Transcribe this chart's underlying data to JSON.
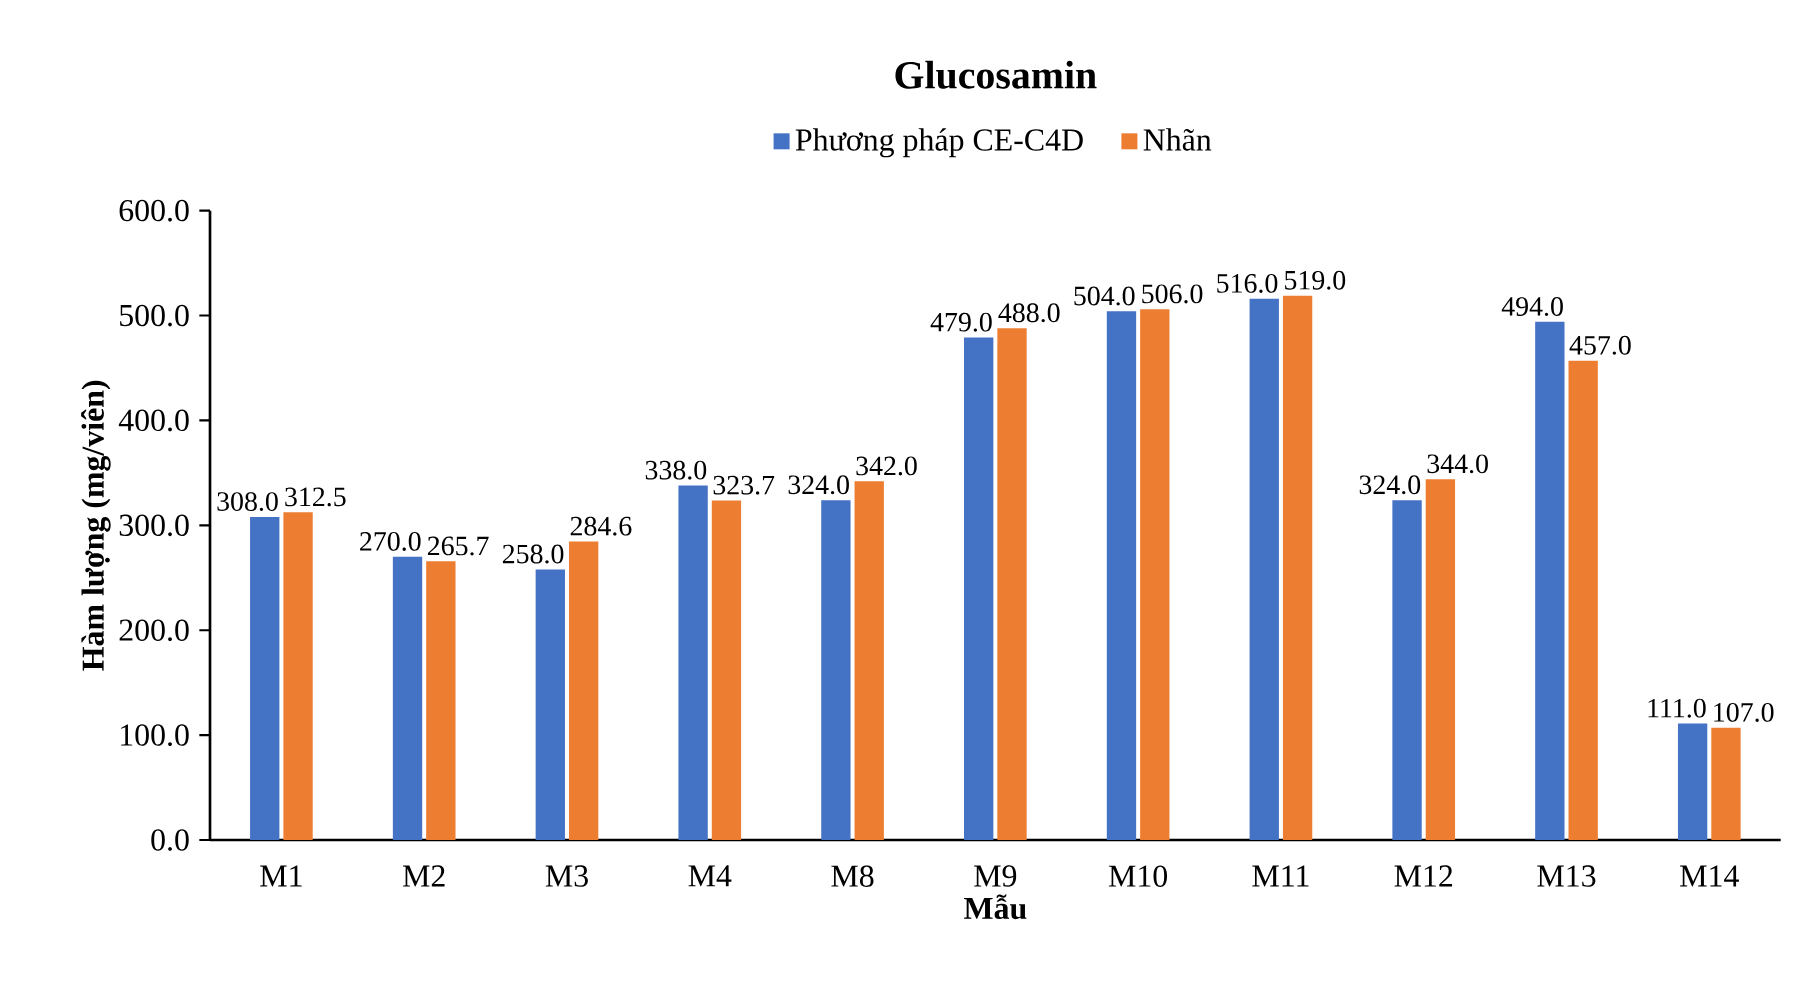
{
  "chart_data": {
    "type": "bar",
    "title": "Glucosamin",
    "xlabel": "Mẫu",
    "ylabel": "Hàm lượng (mg/viên)",
    "categories": [
      "M1",
      "M2",
      "M3",
      "M4",
      "M8",
      "M9",
      "M10",
      "M11",
      "M12",
      "M13",
      "M14"
    ],
    "series": [
      {
        "name": "Phương pháp CE-C4D",
        "color": "#4472c4",
        "values": [
          308.0,
          270.0,
          258.0,
          338.0,
          324.0,
          479.0,
          504.0,
          516.0,
          324.0,
          494.0,
          111.0
        ],
        "value_labels": [
          "308.0",
          "270.0",
          "258.0",
          "338.0",
          "324.0",
          "479.0",
          "504.0",
          "516.0",
          "324.0",
          "494.0",
          "111.0"
        ]
      },
      {
        "name": "Nhãn",
        "color": "#ed7d31",
        "values": [
          312.5,
          265.7,
          284.6,
          323.7,
          342.0,
          488.0,
          506.0,
          519.0,
          344.0,
          457.0,
          107.0
        ],
        "value_labels": [
          "312.5",
          "265.7",
          "284.6",
          "323.7",
          "342.0",
          "488.0",
          "506.0",
          "519.0",
          "344.0",
          "457.0",
          "107.0"
        ]
      }
    ],
    "ylim": [
      0,
      600
    ],
    "yticks": [
      {
        "value": 0,
        "label": "0.0"
      },
      {
        "value": 100,
        "label": "100.0"
      },
      {
        "value": 200,
        "label": "200.0"
      },
      {
        "value": 300,
        "label": "300.0"
      },
      {
        "value": 400,
        "label": "400.0"
      },
      {
        "value": 500,
        "label": "500.0"
      },
      {
        "value": 600,
        "label": "600.0"
      }
    ],
    "legend": "top"
  }
}
